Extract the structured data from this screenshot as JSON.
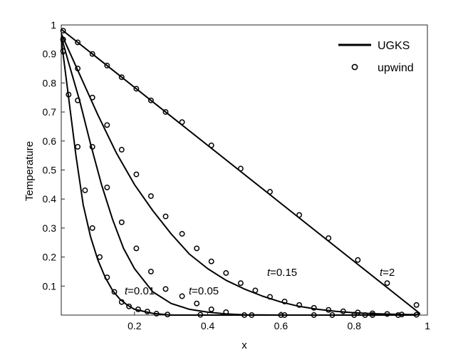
{
  "chart_data": {
    "type": "line",
    "xlabel": "x",
    "ylabel": "Temperature",
    "xlim": [
      0,
      1
    ],
    "ylim": [
      0,
      1
    ],
    "xticks": [
      "0.2",
      "0.4",
      "0.6",
      "0.8",
      "1"
    ],
    "yticks": [
      "0.1",
      "0.2",
      "0.3",
      "0.4",
      "0.5",
      "0.6",
      "0.7",
      "0.8",
      "0.9",
      "1"
    ],
    "grid": false,
    "legend": {
      "position": "top-right",
      "entries": [
        {
          "label": "UGKS",
          "marker": "line"
        },
        {
          "label": "upwind",
          "marker": "circle"
        }
      ]
    },
    "series": [
      {
        "curve_label": {
          "italic": "t",
          "rest": "=0.01"
        },
        "line": {
          "x": [
            0.0,
            0.02,
            0.04,
            0.06,
            0.08,
            0.1,
            0.12,
            0.14,
            0.16,
            0.18,
            0.2,
            0.25,
            0.3,
            0.4,
            0.5,
            0.6,
            0.7,
            0.8,
            0.9,
            0.97
          ],
          "y": [
            0.95,
            0.75,
            0.55,
            0.38,
            0.27,
            0.19,
            0.13,
            0.085,
            0.055,
            0.035,
            0.02,
            0.006,
            0.0,
            0.0,
            0.0,
            0.0,
            0.0,
            0.0,
            0.0,
            0.0
          ]
        },
        "markers": {
          "x": [
            0.005,
            0.02,
            0.045,
            0.065,
            0.085,
            0.105,
            0.125,
            0.145,
            0.165,
            0.185,
            0.21,
            0.235,
            0.26,
            0.29,
            0.38,
            0.5,
            0.61,
            0.69,
            0.8,
            0.85
          ],
          "y": [
            0.91,
            0.76,
            0.58,
            0.43,
            0.3,
            0.2,
            0.13,
            0.08,
            0.045,
            0.03,
            0.02,
            0.012,
            0.005,
            0.002,
            0.001,
            0.0,
            0.0,
            0.0,
            0.0,
            0.0
          ]
        }
      },
      {
        "curve_label": {
          "italic": "t",
          "rest": "=0.05"
        },
        "line": {
          "x": [
            0.0,
            0.02,
            0.05,
            0.08,
            0.11,
            0.14,
            0.17,
            0.2,
            0.25,
            0.3,
            0.35,
            0.4,
            0.45,
            0.5,
            0.6,
            0.7,
            0.8,
            0.9,
            0.97
          ],
          "y": [
            0.96,
            0.87,
            0.74,
            0.59,
            0.45,
            0.33,
            0.23,
            0.16,
            0.08,
            0.04,
            0.02,
            0.01,
            0.004,
            0.001,
            0.0,
            0.0,
            0.0,
            0.0,
            0.0
          ]
        },
        "markers": {
          "x": [
            0.005,
            0.045,
            0.085,
            0.125,
            0.165,
            0.205,
            0.245,
            0.285,
            0.33,
            0.37,
            0.41,
            0.45,
            0.52,
            0.6,
            0.74,
            0.83,
            0.92
          ],
          "y": [
            0.95,
            0.74,
            0.58,
            0.44,
            0.32,
            0.23,
            0.15,
            0.09,
            0.065,
            0.04,
            0.02,
            0.01,
            0.0,
            0.0,
            0.0,
            0.0,
            0.0
          ]
        }
      },
      {
        "curve_label": {
          "italic": "t",
          "rest": "=0.15"
        },
        "line": {
          "x": [
            0.0,
            0.05,
            0.1,
            0.15,
            0.2,
            0.25,
            0.3,
            0.35,
            0.4,
            0.45,
            0.5,
            0.55,
            0.6,
            0.65,
            0.7,
            0.75,
            0.8,
            0.85,
            0.9,
            0.95,
            0.98
          ],
          "y": [
            0.97,
            0.83,
            0.69,
            0.56,
            0.45,
            0.36,
            0.28,
            0.21,
            0.16,
            0.12,
            0.09,
            0.065,
            0.045,
            0.03,
            0.02,
            0.013,
            0.008,
            0.005,
            0.003,
            0.002,
            0.002
          ]
        },
        "markers": {
          "x": [
            0.005,
            0.045,
            0.085,
            0.125,
            0.165,
            0.205,
            0.245,
            0.285,
            0.33,
            0.37,
            0.41,
            0.45,
            0.49,
            0.53,
            0.57,
            0.61,
            0.65,
            0.69,
            0.73,
            0.77,
            0.81,
            0.85,
            0.89,
            0.93,
            0.97
          ],
          "y": [
            0.95,
            0.85,
            0.75,
            0.655,
            0.57,
            0.485,
            0.41,
            0.34,
            0.28,
            0.23,
            0.185,
            0.145,
            0.11,
            0.085,
            0.063,
            0.047,
            0.035,
            0.025,
            0.018,
            0.013,
            0.009,
            0.006,
            0.004,
            0.002,
            0.001
          ]
        }
      },
      {
        "curve_label": {
          "italic": "t",
          "rest": "=2"
        },
        "line": {
          "x": [
            0.0,
            0.98
          ],
          "y": [
            0.985,
            0.005
          ]
        },
        "markers": {
          "x": [
            0.005,
            0.045,
            0.085,
            0.125,
            0.165,
            0.205,
            0.245,
            0.285,
            0.33,
            0.41,
            0.49,
            0.57,
            0.65,
            0.73,
            0.81,
            0.89,
            0.97
          ],
          "y": [
            0.98,
            0.94,
            0.9,
            0.86,
            0.82,
            0.78,
            0.74,
            0.7,
            0.665,
            0.585,
            0.505,
            0.425,
            0.345,
            0.265,
            0.19,
            0.11,
            0.035
          ]
        }
      }
    ]
  }
}
